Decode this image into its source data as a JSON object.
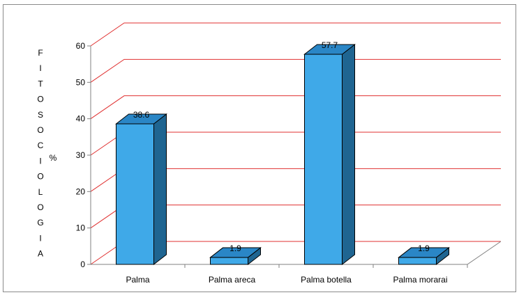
{
  "chart_data": {
    "type": "bar",
    "categories": [
      "Palma",
      "Palma areca",
      "Palma botella",
      "Palma morarai"
    ],
    "values": [
      38.6,
      1.9,
      57.7,
      1.9
    ],
    "value_labels": [
      "38.6",
      "1.9",
      "57.7",
      "1.9"
    ],
    "ylabel": "FITOSOCIOLOGIA",
    "ylabel_letters": [
      "F",
      "I",
      "T",
      "O",
      "S",
      "O",
      "C",
      "I",
      "O",
      "L",
      "O",
      "G",
      "I",
      "A"
    ],
    "unit_label": "%",
    "ylim": [
      0,
      60
    ],
    "yticks": [
      "0",
      "10",
      "20",
      "30",
      "40",
      "50",
      "60"
    ],
    "style": "3d-column",
    "gridlines": true,
    "legend": "none",
    "colors": {
      "bar_front": "#3fa9e8",
      "bar_side": "#1f6591",
      "bar_top": "#2a86c6",
      "gridline": "#e03030",
      "axis": "#808080"
    }
  }
}
